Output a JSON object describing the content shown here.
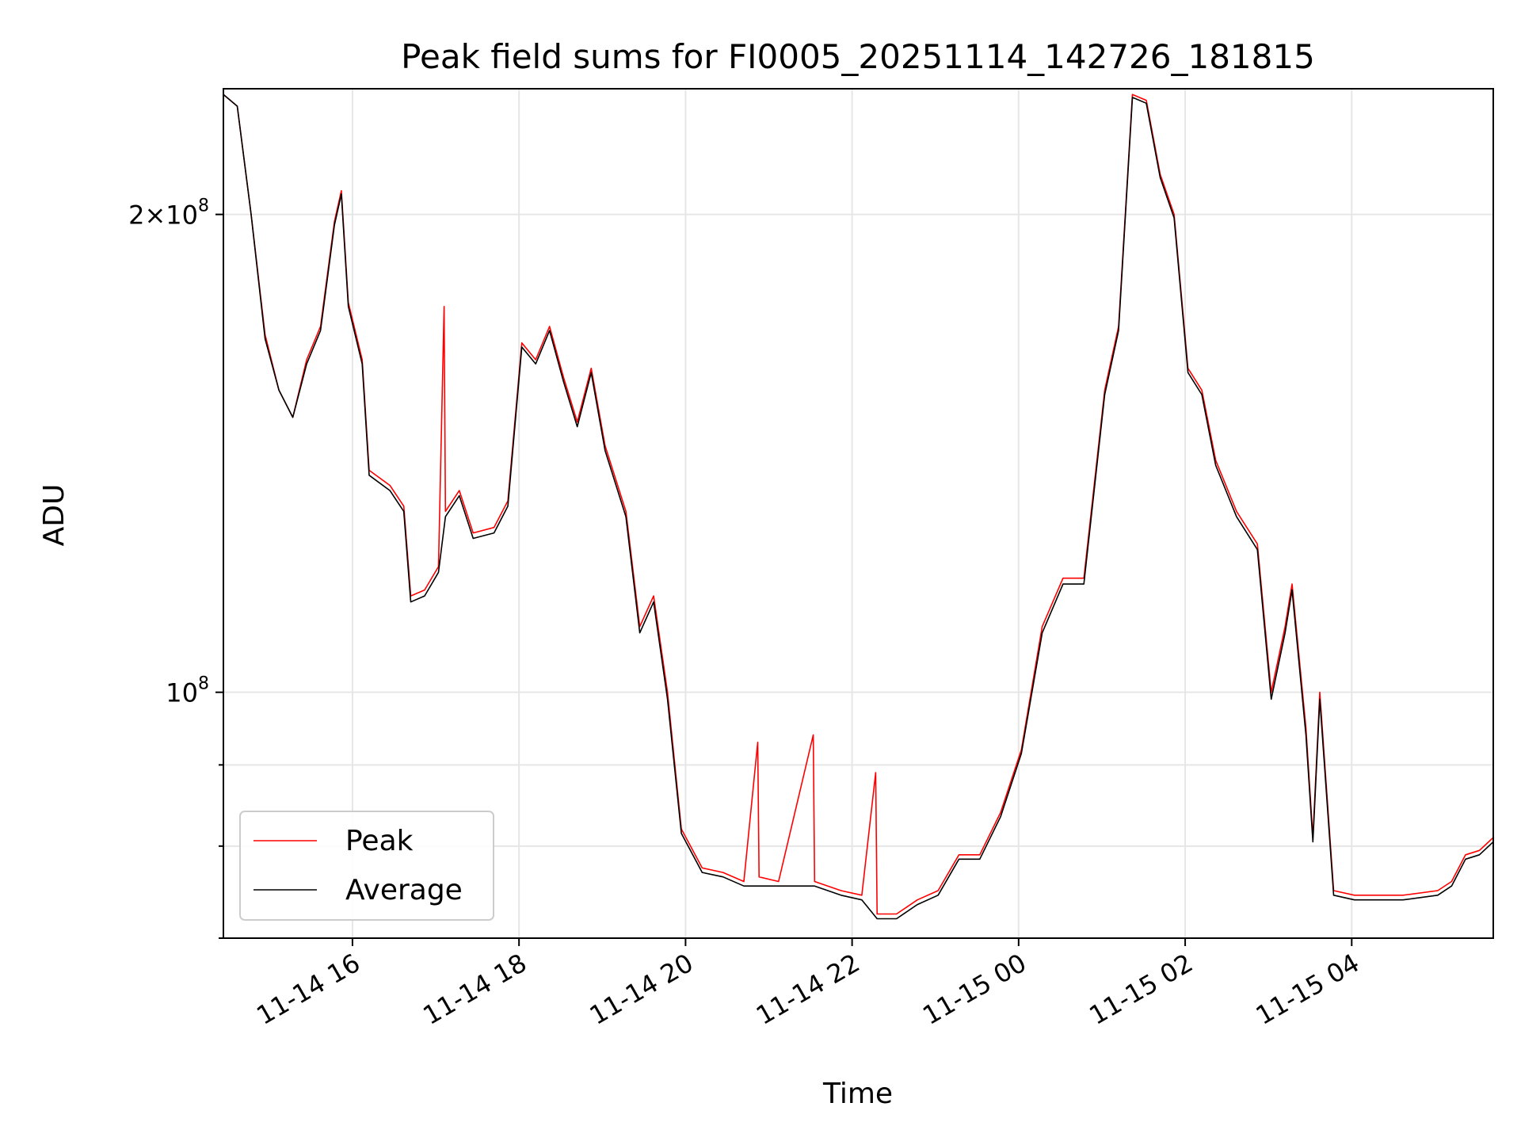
{
  "chart_data": {
    "type": "line",
    "title": "Peak field sums for FI0005_20251114_142726_181815",
    "xlabel": "Time",
    "ylabel": "ADU",
    "yscale": "log",
    "grid": true,
    "legend": {
      "placement": "lower-left"
    },
    "x_ticks": [
      "11-14 16",
      "11-14 18",
      "11-14 20",
      "11-14 22",
      "11-15 00",
      "11-15 02",
      "11-15 04"
    ],
    "y_ticks": [
      {
        "label_base": "10",
        "label_exp": "8",
        "label_prefix": "",
        "value": 100000000
      },
      {
        "label_base": "10",
        "label_exp": "8",
        "label_prefix": "2×",
        "value": 200000000
      }
    ],
    "xlim": [
      "2025-11-14 14:27",
      "2025-11-15 05:42"
    ],
    "ylim": [
      70000000,
      240000000
    ],
    "series": [
      {
        "name": "Peak",
        "color": "#ff0000",
        "points": [
          [
            "2025-11-14 14:27",
            238000000
          ],
          [
            "2025-11-14 14:37",
            234000000
          ],
          [
            "2025-11-14 14:47",
            200000000
          ],
          [
            "2025-11-14 14:57",
            168000000
          ],
          [
            "2025-11-14 15:07",
            155000000
          ],
          [
            "2025-11-14 15:17",
            149000000
          ],
          [
            "2025-11-14 15:27",
            162000000
          ],
          [
            "2025-11-14 15:37",
            170000000
          ],
          [
            "2025-11-14 15:47",
            198000000
          ],
          [
            "2025-11-14 15:52",
            207000000
          ],
          [
            "2025-11-14 15:57",
            176000000
          ],
          [
            "2025-11-14 16:07",
            162000000
          ],
          [
            "2025-11-14 16:12",
            138000000
          ],
          [
            "2025-11-14 16:27",
            135000000
          ],
          [
            "2025-11-14 16:37",
            131000000
          ],
          [
            "2025-11-14 16:42",
            115000000
          ],
          [
            "2025-11-14 16:52",
            116000000
          ],
          [
            "2025-11-14 17:02",
            120000000
          ],
          [
            "2025-11-14 17:06",
            175000000
          ],
          [
            "2025-11-14 17:07",
            130000000
          ],
          [
            "2025-11-14 17:17",
            134000000
          ],
          [
            "2025-11-14 17:27",
            126000000
          ],
          [
            "2025-11-14 17:42",
            127000000
          ],
          [
            "2025-11-14 17:52",
            132000000
          ],
          [
            "2025-11-14 18:02",
            166000000
          ],
          [
            "2025-11-14 18:12",
            162000000
          ],
          [
            "2025-11-14 18:22",
            170000000
          ],
          [
            "2025-11-14 18:32",
            158000000
          ],
          [
            "2025-11-14 18:42",
            148000000
          ],
          [
            "2025-11-14 18:52",
            160000000
          ],
          [
            "2025-11-14 19:02",
            143000000
          ],
          [
            "2025-11-14 19:17",
            130000000
          ],
          [
            "2025-11-14 19:27",
            110000000
          ],
          [
            "2025-11-14 19:37",
            115000000
          ],
          [
            "2025-11-14 19:47",
            100000000
          ],
          [
            "2025-11-14 19:57",
            82000000
          ],
          [
            "2025-11-14 20:12",
            77500000
          ],
          [
            "2025-11-14 20:27",
            77000000
          ],
          [
            "2025-11-14 20:42",
            76000000
          ],
          [
            "2025-11-14 20:52",
            93000000
          ],
          [
            "2025-11-14 20:53",
            76500000
          ],
          [
            "2025-11-14 21:07",
            76000000
          ],
          [
            "2025-11-14 21:32",
            94000000
          ],
          [
            "2025-11-14 21:33",
            76000000
          ],
          [
            "2025-11-14 21:52",
            75000000
          ],
          [
            "2025-11-14 22:07",
            74500000
          ],
          [
            "2025-11-14 22:17",
            89000000
          ],
          [
            "2025-11-14 22:18",
            72500000
          ],
          [
            "2025-11-14 22:32",
            72500000
          ],
          [
            "2025-11-14 22:47",
            74000000
          ],
          [
            "2025-11-14 23:02",
            75000000
          ],
          [
            "2025-11-14 23:17",
            79000000
          ],
          [
            "2025-11-14 23:32",
            79000000
          ],
          [
            "2025-11-14 23:47",
            84000000
          ],
          [
            "2025-11-15 00:02",
            92000000
          ],
          [
            "2025-11-15 00:17",
            110000000
          ],
          [
            "2025-11-15 00:32",
            118000000
          ],
          [
            "2025-11-15 00:47",
            118000000
          ],
          [
            "2025-11-15 01:02",
            155000000
          ],
          [
            "2025-11-15 01:12",
            170000000
          ],
          [
            "2025-11-15 01:22",
            238000000
          ],
          [
            "2025-11-15 01:32",
            236000000
          ],
          [
            "2025-11-15 01:42",
            212000000
          ],
          [
            "2025-11-15 01:52",
            200000000
          ],
          [
            "2025-11-15 02:02",
            160000000
          ],
          [
            "2025-11-15 02:12",
            155000000
          ],
          [
            "2025-11-15 02:22",
            140000000
          ],
          [
            "2025-11-15 02:37",
            130000000
          ],
          [
            "2025-11-15 02:52",
            124000000
          ],
          [
            "2025-11-15 03:02",
            100000000
          ],
          [
            "2025-11-15 03:12",
            110000000
          ],
          [
            "2025-11-15 03:17",
            117000000
          ],
          [
            "2025-11-15 03:27",
            95000000
          ],
          [
            "2025-11-15 03:32",
            81000000
          ],
          [
            "2025-11-15 03:37",
            100000000
          ],
          [
            "2025-11-15 03:47",
            75000000
          ],
          [
            "2025-11-15 04:02",
            74500000
          ],
          [
            "2025-11-15 04:37",
            74500000
          ],
          [
            "2025-11-15 05:02",
            75000000
          ],
          [
            "2025-11-15 05:12",
            76000000
          ],
          [
            "2025-11-15 05:22",
            79000000
          ],
          [
            "2025-11-15 05:32",
            79500000
          ],
          [
            "2025-11-15 05:42",
            81000000
          ]
        ]
      },
      {
        "name": "Average",
        "color": "#000000",
        "points": [
          [
            "2025-11-14 14:27",
            238000000
          ],
          [
            "2025-11-14 14:37",
            234000000
          ],
          [
            "2025-11-14 14:47",
            200000000
          ],
          [
            "2025-11-14 14:57",
            167000000
          ],
          [
            "2025-11-14 15:07",
            155000000
          ],
          [
            "2025-11-14 15:17",
            149000000
          ],
          [
            "2025-11-14 15:27",
            161000000
          ],
          [
            "2025-11-14 15:37",
            169000000
          ],
          [
            "2025-11-14 15:47",
            197000000
          ],
          [
            "2025-11-14 15:52",
            206000000
          ],
          [
            "2025-11-14 15:57",
            175000000
          ],
          [
            "2025-11-14 16:07",
            161000000
          ],
          [
            "2025-11-14 16:12",
            137000000
          ],
          [
            "2025-11-14 16:27",
            134000000
          ],
          [
            "2025-11-14 16:37",
            130000000
          ],
          [
            "2025-11-14 16:42",
            114000000
          ],
          [
            "2025-11-14 16:52",
            115000000
          ],
          [
            "2025-11-14 17:02",
            119000000
          ],
          [
            "2025-11-14 17:07",
            129000000
          ],
          [
            "2025-11-14 17:17",
            133000000
          ],
          [
            "2025-11-14 17:27",
            125000000
          ],
          [
            "2025-11-14 17:42",
            126000000
          ],
          [
            "2025-11-14 17:52",
            131000000
          ],
          [
            "2025-11-14 18:02",
            165000000
          ],
          [
            "2025-11-14 18:12",
            161000000
          ],
          [
            "2025-11-14 18:22",
            169000000
          ],
          [
            "2025-11-14 18:32",
            157000000
          ],
          [
            "2025-11-14 18:42",
            147000000
          ],
          [
            "2025-11-14 18:52",
            159000000
          ],
          [
            "2025-11-14 19:02",
            142000000
          ],
          [
            "2025-11-14 19:17",
            129000000
          ],
          [
            "2025-11-14 19:27",
            109000000
          ],
          [
            "2025-11-14 19:37",
            114000000
          ],
          [
            "2025-11-14 19:47",
            99000000
          ],
          [
            "2025-11-14 19:57",
            81500000
          ],
          [
            "2025-11-14 20:12",
            77000000
          ],
          [
            "2025-11-14 20:27",
            76500000
          ],
          [
            "2025-11-14 20:42",
            75500000
          ],
          [
            "2025-11-14 21:07",
            75500000
          ],
          [
            "2025-11-14 21:33",
            75500000
          ],
          [
            "2025-11-14 21:52",
            74500000
          ],
          [
            "2025-11-14 22:07",
            74000000
          ],
          [
            "2025-11-14 22:18",
            72000000
          ],
          [
            "2025-11-14 22:32",
            72000000
          ],
          [
            "2025-11-14 22:47",
            73500000
          ],
          [
            "2025-11-14 23:02",
            74500000
          ],
          [
            "2025-11-14 23:17",
            78500000
          ],
          [
            "2025-11-14 23:32",
            78500000
          ],
          [
            "2025-11-14 23:47",
            83500000
          ],
          [
            "2025-11-15 00:02",
            91500000
          ],
          [
            "2025-11-15 00:17",
            109000000
          ],
          [
            "2025-11-15 00:32",
            117000000
          ],
          [
            "2025-11-15 00:47",
            117000000
          ],
          [
            "2025-11-15 01:02",
            154000000
          ],
          [
            "2025-11-15 01:12",
            169000000
          ],
          [
            "2025-11-15 01:22",
            237000000
          ],
          [
            "2025-11-15 01:32",
            235000000
          ],
          [
            "2025-11-15 01:42",
            211000000
          ],
          [
            "2025-11-15 01:52",
            199000000
          ],
          [
            "2025-11-15 02:02",
            159000000
          ],
          [
            "2025-11-15 02:12",
            154000000
          ],
          [
            "2025-11-15 02:22",
            139000000
          ],
          [
            "2025-11-15 02:37",
            129000000
          ],
          [
            "2025-11-15 02:52",
            123000000
          ],
          [
            "2025-11-15 03:02",
            99000000
          ],
          [
            "2025-11-15 03:12",
            109000000
          ],
          [
            "2025-11-15 03:17",
            116000000
          ],
          [
            "2025-11-15 03:27",
            94000000
          ],
          [
            "2025-11-15 03:32",
            80500000
          ],
          [
            "2025-11-15 03:37",
            99000000
          ],
          [
            "2025-11-15 03:47",
            74500000
          ],
          [
            "2025-11-15 04:02",
            74000000
          ],
          [
            "2025-11-15 04:37",
            74000000
          ],
          [
            "2025-11-15 05:02",
            74500000
          ],
          [
            "2025-11-15 05:12",
            75500000
          ],
          [
            "2025-11-15 05:22",
            78500000
          ],
          [
            "2025-11-15 05:32",
            79000000
          ],
          [
            "2025-11-15 05:42",
            80500000
          ]
        ]
      }
    ]
  }
}
